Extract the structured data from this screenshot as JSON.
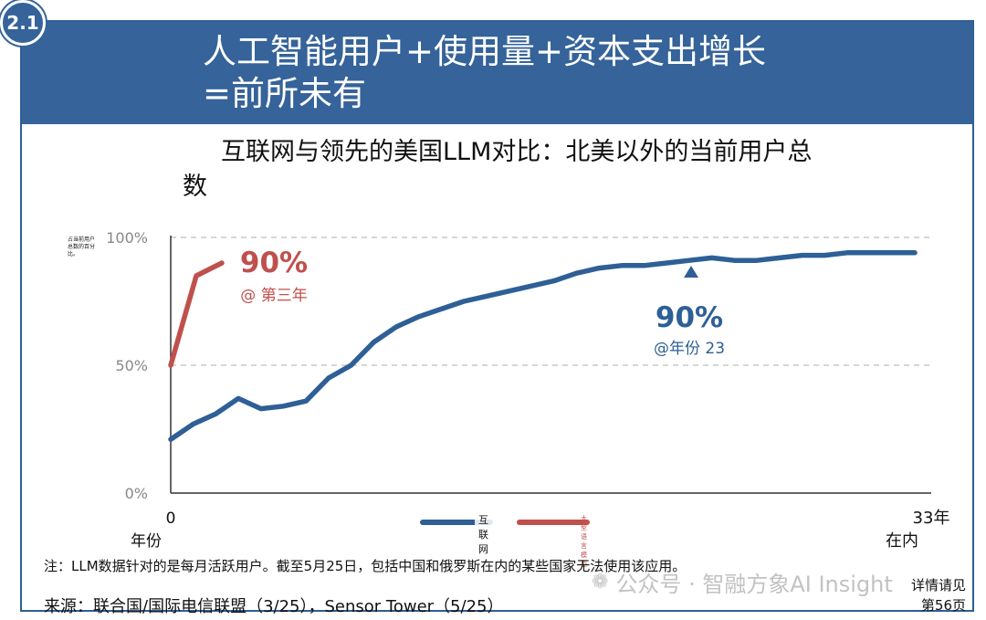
{
  "header": {
    "section_number": "2.1",
    "title": "人工智能用户+使用量+资本支出增长\n=前所未有"
  },
  "chart_title": "互联网与领先的美国LLM对比：北美以外的当前用户总数",
  "colors": {
    "header": "#35639a",
    "internet": "#2e5f96",
    "llm": "#c0504d"
  },
  "chart_data": {
    "type": "line",
    "ylabel": "占当前用户总数的百分比。",
    "xlabel": "年份",
    "ylim": [
      0,
      100
    ],
    "y_ticks": [
      "0%",
      "50%",
      "100%"
    ],
    "x_tick_start": "0",
    "x_tick_end": "33年在内",
    "grid": true,
    "series": [
      {
        "name": "互联网",
        "x": [
          0,
          1,
          2,
          3,
          4,
          5,
          6,
          7,
          8,
          9,
          10,
          11,
          12,
          13,
          14,
          15,
          16,
          17,
          18,
          19,
          20,
          21,
          22,
          23,
          24,
          25,
          26,
          27,
          28,
          29,
          30,
          31,
          32,
          33
        ],
        "values": [
          21,
          27,
          31,
          37,
          33,
          34,
          36,
          45,
          50,
          59,
          65,
          69,
          72,
          75,
          77,
          79,
          81,
          83,
          86,
          88,
          89,
          89,
          90,
          91,
          92,
          91,
          91,
          92,
          93,
          93,
          94,
          94,
          94,
          94
        ]
      },
      {
        "name": "大型语言模型",
        "x": [
          0,
          1,
          2
        ],
        "values": [
          50,
          85,
          90
        ]
      }
    ],
    "annotations": [
      {
        "series": "大型语言模型",
        "value": "90%",
        "text": "@ 第三年"
      },
      {
        "series": "互联网",
        "value": "90%",
        "text": "@年份 23"
      }
    ]
  },
  "footer": {
    "note": "注：LLM数据针对的是每月活跃用户。截至5月25日，包括中国和俄罗斯在内的某些国家无法使用该应用。",
    "source": "来源：联合国/国际电信联盟（3/25），Sensor Tower（5/25）",
    "watermark": "公众号 · 智融方象AI Insight",
    "detail_line1": "详情请见",
    "detail_line2": "第56页"
  }
}
